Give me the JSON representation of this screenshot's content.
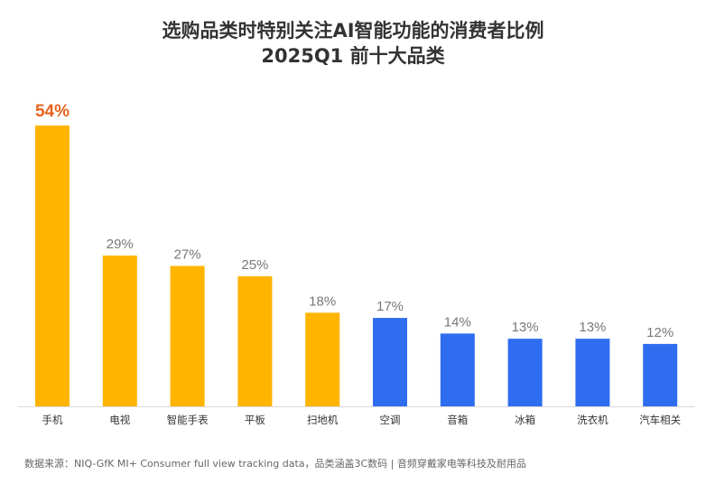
{
  "chart_data": {
    "type": "bar",
    "title": "选购品类时特别关注AI智能功能的消费者比例",
    "subtitle": "2025Q1 前十大品类",
    "categories": [
      "手机",
      "电视",
      "智能手表",
      "平板",
      "扫地机",
      "空调",
      "音箱",
      "冰箱",
      "洗衣机",
      "汽车相关"
    ],
    "values": [
      54,
      29,
      27,
      25,
      18,
      17,
      14,
      13,
      13,
      12
    ],
    "value_labels": [
      "54%",
      "29%",
      "27%",
      "25%",
      "18%",
      "17%",
      "14%",
      "13%",
      "13%",
      "12%"
    ],
    "group": [
      "3C",
      "3C",
      "3C",
      "3C",
      "3C",
      "durable",
      "durable",
      "durable",
      "durable",
      "durable"
    ],
    "xlabel": "",
    "ylabel": "",
    "ylim": [
      0,
      54
    ],
    "grid": false,
    "colors": {
      "3C": "#FFB400",
      "durable": "#2E6DF0",
      "highlight_label": "#E8621E",
      "label": "#777777"
    }
  },
  "footer": "数据来源：NIQ-GfK MI+ Consumer full view tracking data，品类涵盖3C数码 | 音频穿戴家电等科技及耐用品"
}
